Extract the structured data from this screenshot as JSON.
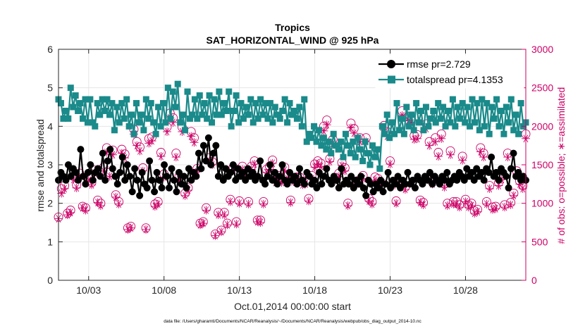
{
  "chart_data": {
    "type": "line",
    "title": "Tropics",
    "subtitle": "SAT_HORIZONTAL_WIND @ 925 hPa",
    "xlabel": "Oct.01,2014 00:00:00 start",
    "ylabel_left": "rmse and totalspread",
    "ylabel_right": "# of obs: o=possible; ∗=assimilated",
    "footer": "data file: /Users/gharamti/Documents/NCAR/Reanalysis/~/Documents/NCAR/Reanalysis/webpub/obs_diag_output_2014-10.nc",
    "xlim": [
      1.0,
      32.0
    ],
    "ylim_left": [
      0,
      6
    ],
    "ylim_right": [
      0,
      3000
    ],
    "x_ticks": [
      3,
      8,
      13,
      18,
      23,
      28
    ],
    "x_tick_labels": [
      "10/03",
      "10/08",
      "10/13",
      "10/18",
      "10/23",
      "10/28"
    ],
    "y_left_ticks": [
      0,
      1,
      2,
      3,
      4,
      5,
      6
    ],
    "y_left_tick_labels": [
      "0",
      "1",
      "2",
      "3",
      "4",
      "5",
      "6"
    ],
    "y_right_ticks": [
      0,
      500,
      1000,
      1500,
      2000,
      2500,
      3000
    ],
    "y_right_tick_labels": [
      "0",
      "500",
      "1000",
      "1500",
      "2000",
      "2500",
      "3000"
    ],
    "legend_position": "top-right",
    "series": [
      {
        "name": "rmse pr=2.729",
        "axis": "left",
        "color": "#000000",
        "marker": "circle",
        "values": [
          2.6,
          2.8,
          2.7,
          2.6,
          3.0,
          2.7,
          2.9,
          2.8,
          2.6,
          3.4,
          2.7,
          2.5,
          2.8,
          3.0,
          2.6,
          2.8,
          2.9,
          2.7,
          3.3,
          2.6,
          3.1,
          3.4,
          2.9,
          2.7,
          2.5,
          2.8,
          3.2,
          2.6,
          3.0,
          2.7,
          2.3,
          2.9,
          2.6,
          2.2,
          2.8,
          2.5,
          2.4,
          3.1,
          2.6,
          2.3,
          2.8,
          2.6,
          2.4,
          3.0,
          2.7,
          2.4,
          2.9,
          2.6,
          2.3,
          2.8,
          2.5,
          2.7,
          2.4,
          2.9,
          2.6,
          2.8,
          2.7,
          3.3,
          2.9,
          3.5,
          3.1,
          3.7,
          3.0,
          3.3,
          3.5,
          2.7,
          3.0,
          2.6,
          2.9,
          2.7,
          2.8,
          3.0,
          2.6,
          2.9,
          2.7,
          2.8,
          2.6,
          2.9,
          2.7,
          2.8,
          2.6,
          2.7,
          3.1,
          2.6,
          2.5,
          2.7,
          3.0,
          2.6,
          2.8,
          2.5,
          2.7,
          3.0,
          2.6,
          2.5,
          2.8,
          2.6,
          2.7,
          2.5,
          2.9,
          2.6,
          2.5,
          2.8,
          2.7,
          2.5,
          2.6,
          2.4,
          2.8,
          2.5,
          2.7,
          2.9,
          2.6,
          2.5,
          2.7,
          2.6,
          2.4,
          2.9,
          2.5,
          2.6,
          2.5,
          2.7,
          2.4,
          2.6,
          2.5,
          2.7,
          2.4,
          2.2,
          2.6,
          2.5,
          2.3,
          2.5,
          2.4,
          2.6,
          2.3,
          2.5,
          2.8,
          2.4,
          2.6,
          2.5,
          2.7,
          2.4,
          2.6,
          2.5,
          2.8,
          2.5,
          2.6,
          2.4,
          2.7,
          2.6,
          2.5,
          2.7,
          2.6,
          2.8,
          2.5,
          2.7,
          2.6,
          2.5,
          2.7,
          2.6,
          2.8,
          2.5,
          2.6,
          2.7,
          2.6,
          2.8,
          2.7,
          2.6,
          2.9,
          2.7,
          2.8,
          2.6,
          2.9,
          2.7,
          2.8,
          2.6,
          2.9,
          2.8,
          3.2,
          2.7,
          2.8,
          2.6,
          2.9,
          2.8,
          2.7,
          2.4,
          2.9,
          3.3,
          2.7,
          2.8,
          2.6,
          2.7,
          2.6
        ]
      },
      {
        "name": "totalspread pr=4.1353",
        "axis": "left",
        "color": "#1a8a8a",
        "marker": "square",
        "values": [
          4.7,
          4.6,
          4.2,
          4.4,
          4.2,
          5.0,
          4.5,
          4.8,
          4.4,
          4.6,
          4.2,
          4.7,
          4.1,
          4.7,
          4.1,
          4.0,
          4.6,
          4.3,
          4.7,
          4.4,
          4.7,
          4.3,
          4.6,
          3.9,
          4.5,
          4.1,
          4.6,
          4.2,
          4.7,
          4.0,
          4.3,
          3.8,
          4.6,
          4.1,
          4.3,
          3.9,
          4.7,
          4.2,
          4.6,
          4.1,
          3.8,
          4.5,
          4.0,
          4.6,
          4.1,
          5.0,
          4.2,
          4.9,
          4.5,
          5.1,
          4.1,
          4.3,
          3.9,
          4.9,
          4.2,
          4.3,
          4.7,
          4.2,
          4.8,
          4.3,
          4.6,
          4.2,
          4.8,
          4.1,
          4.7,
          4.3,
          4.9,
          4.3,
          4.6,
          4.4,
          4.9,
          4.0,
          4.4,
          4.8,
          4.1,
          4.6,
          4.2,
          4.5,
          4.3,
          4.7,
          4.1,
          4.6,
          4.2,
          4.7,
          4.3,
          4.6,
          4.2,
          4.6,
          4.1,
          4.5,
          4.3,
          4.2,
          4.4,
          4.7,
          4.1,
          4.6,
          4.3,
          4.4,
          4.2,
          4.5,
          4.0,
          4.7,
          3.6,
          3.8,
          3.7,
          4.0,
          3.6,
          3.9,
          3.5,
          3.7,
          3.4,
          3.6,
          3.3,
          3.8,
          3.5,
          3.4,
          3.6,
          3.2,
          3.8,
          3.5,
          3.3,
          3.6,
          3.2,
          3.7,
          3.4,
          3.1,
          3.6,
          3.3,
          3.0,
          3.5,
          3.2,
          3.4,
          2.9,
          4.0,
          3.8,
          4.3,
          3.7,
          4.1,
          3.8,
          4.6,
          3.9,
          4.2,
          3.8,
          4.5,
          4.0,
          4.3,
          3.9,
          4.6,
          4.1,
          4.4,
          3.9,
          4.5,
          4.0,
          4.2,
          4.4,
          4.1,
          4.6,
          4.2,
          4.5,
          4.0,
          4.4,
          4.1,
          4.7,
          4.0,
          4.5,
          4.2,
          4.6,
          4.1,
          4.5,
          4.0,
          4.7,
          4.1,
          4.6,
          3.9,
          4.7,
          4.0,
          4.6,
          3.8,
          4.5,
          4.2,
          4.7,
          4.0,
          4.4,
          3.8,
          4.5,
          4.1,
          4.7,
          3.9,
          4.3,
          3.8,
          4.6,
          4.0,
          4.1
        ]
      },
      {
        "name": "obs possible",
        "axis": "right",
        "color": "#cc0066",
        "marker": "open-circle",
        "values": [
          820,
          1190,
          1230,
          870,
          910,
          1350,
          1240,
          1390,
          960,
          940,
          1340,
          1270,
          1430,
          1040,
          1000,
          1470,
          1720,
          1400,
          1690,
          1110,
          1020,
          1700,
          1640,
          680,
          700,
          1960,
          1800,
          1730,
          1460,
          680,
          1840,
          1860,
          990,
          1020,
          1660,
          1380,
          1990,
          2170,
          2110,
          1650,
          1350,
          1990,
          1130,
          1200,
          1930,
          1850,
          1450,
          740,
          760,
          940,
          1590,
          1540,
          600,
          880,
          650,
          880,
          740,
          1050,
          1470,
          760,
          1030,
          1480,
          1380,
          1020,
          1480,
          1550,
          780,
          780,
          1020,
          1440,
          1480,
          1560,
          1310,
          1360,
          1310,
          1470,
          1360,
          1040,
          1320,
          1340,
          1340,
          1280,
          1290,
          1060,
          1360,
          1510,
          1550,
          1520,
          2000,
          2080,
          1580,
          1830,
          1330,
          1390,
          1530,
          1460,
          1000,
          2040,
          1970,
          1290,
          1850,
          1360,
          1850,
          1060,
          1020,
          1340,
          1320,
          1270,
          2010,
          1930,
          1550,
          1270,
          1030,
          1290,
          2200,
          1210,
          2130,
          2100,
          1880,
          1890,
          1040,
          1010,
          2030,
          1800,
          1290,
          1850,
          1660,
          1900,
          1250,
          1000,
          1680,
          1020,
          1020,
          980,
          1610,
          1050,
          980,
          1000,
          900,
          920,
          1720,
          1650,
          1020,
          1230,
          950,
          960,
          1270,
          1350,
          980,
          1650,
          1010,
          1130,
          1420,
          1290,
          1230,
          1900
        ]
      },
      {
        "name": "obs assimilated",
        "axis": "right",
        "color": "#cc0066",
        "marker": "asterisk",
        "values": [
          800,
          1130,
          1190,
          850,
          880,
          1310,
          1200,
          1340,
          940,
          910,
          1300,
          1240,
          1390,
          1010,
          970,
          1420,
          1660,
          1350,
          1630,
          1080,
          990,
          1650,
          1590,
          660,
          680,
          1900,
          1750,
          1680,
          1420,
          660,
          1780,
          1810,
          960,
          990,
          1610,
          1340,
          1930,
          2110,
          2050,
          1600,
          1310,
          1930,
          1100,
          1170,
          1870,
          1790,
          1410,
          720,
          740,
          910,
          1550,
          1500,
          580,
          850,
          630,
          850,
          720,
          1020,
          1430,
          730,
          1000,
          1440,
          1340,
          990,
          1440,
          1510,
          760,
          750,
          990,
          1400,
          1440,
          1520,
          1270,
          1320,
          1270,
          1430,
          1320,
          1010,
          1280,
          1300,
          1300,
          1240,
          1250,
          1030,
          1320,
          1470,
          1510,
          1480,
          1940,
          2020,
          1540,
          1780,
          1300,
          1350,
          1490,
          1420,
          970,
          1980,
          1910,
          1250,
          1800,
          1320,
          1800,
          1030,
          990,
          1300,
          1280,
          1230,
          1950,
          1870,
          1510,
          1230,
          1000,
          1250,
          2140,
          1180,
          2070,
          2040,
          1830,
          1840,
          1010,
          980,
          1970,
          1750,
          1250,
          1800,
          1610,
          1840,
          1210,
          970,
          1630,
          990,
          990,
          950,
          1560,
          1020,
          950,
          970,
          870,
          890,
          1670,
          1600,
          990,
          1190,
          920,
          930,
          1230,
          1310,
          950,
          1600,
          980,
          1100,
          1380,
          1250,
          1190,
          1840
        ]
      }
    ]
  }
}
